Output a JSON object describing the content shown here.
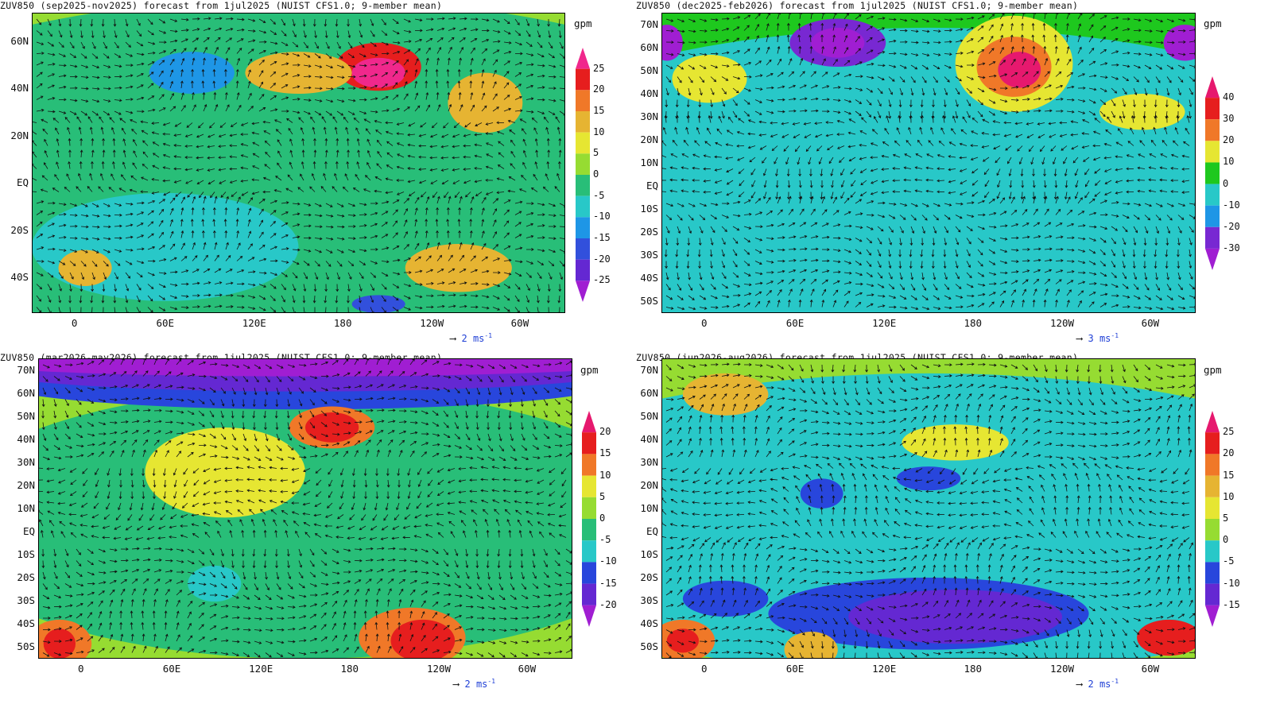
{
  "panels": [
    {
      "id": "son",
      "title": "ZUV850 (sep2025-nov2025) forecast from 1jul2025 (NUIST CFS1.0; 9-member mean)",
      "unit": "gpm",
      "lat_labels": [
        "60N",
        "40N",
        "20N",
        "EQ",
        "20S",
        "40S"
      ],
      "lat_values": [
        60,
        40,
        20,
        0,
        -20,
        -40
      ],
      "lon_labels": [
        "0",
        "60E",
        "120E",
        "180",
        "120W",
        "60W"
      ],
      "colorbar_labels": [
        "25",
        "20",
        "15",
        "10",
        "5",
        "0",
        "-5",
        "-10",
        "-15",
        "-20",
        "-25"
      ],
      "colorbar_colors": [
        "#f0288c",
        "#e61e1e",
        "#f07828",
        "#e6b432",
        "#e6e632",
        "#96dc32",
        "#28be78",
        "#28c8c8",
        "#1e96e6",
        "#3250dc",
        "#6428d2",
        "#a01ed2"
      ],
      "ref_vector": {
        "value": "2",
        "unit": "ms",
        "exp": "-1"
      }
    },
    {
      "id": "djf",
      "title": "ZUV850 (dec2025-feb2026) forecast from 1jul2025 (NUIST CFS1.0; 9-member mean)",
      "unit": "gpm",
      "lat_labels": [
        "70N",
        "60N",
        "50N",
        "40N",
        "30N",
        "20N",
        "10N",
        "EQ",
        "10S",
        "20S",
        "30S",
        "40S",
        "50S"
      ],
      "lat_values": [
        70,
        60,
        50,
        40,
        30,
        20,
        10,
        0,
        -10,
        -20,
        -30,
        -40,
        -50
      ],
      "lon_labels": [
        "0",
        "60E",
        "120E",
        "180",
        "120W",
        "60W"
      ],
      "colorbar_labels": [
        "40",
        "30",
        "20",
        "10",
        "0",
        "-10",
        "-20",
        "-30"
      ],
      "colorbar_colors": [
        "#e6196e",
        "#e61e1e",
        "#f07828",
        "#e6e632",
        "#1ec81e",
        "#28c8c8",
        "#1e96e6",
        "#7828d2",
        "#a01ed2"
      ],
      "ref_vector": {
        "value": "3",
        "unit": "ms",
        "exp": "-1"
      }
    },
    {
      "id": "mam",
      "title": "ZUV850 (mar2026-may2026) forecast from 1jul2025 (NUIST CFS1.0; 9-member mean)",
      "unit": "gpm",
      "lat_labels": [
        "70N",
        "60N",
        "50N",
        "40N",
        "30N",
        "20N",
        "10N",
        "EQ",
        "10S",
        "20S",
        "30S",
        "40S",
        "50S"
      ],
      "lat_values": [
        70,
        60,
        50,
        40,
        30,
        20,
        10,
        0,
        -10,
        -20,
        -30,
        -40,
        -50
      ],
      "lon_labels": [
        "0",
        "60E",
        "120E",
        "180",
        "120W",
        "60W"
      ],
      "colorbar_labels": [
        "20",
        "15",
        "10",
        "5",
        "0",
        "-5",
        "-10",
        "-15",
        "-20"
      ],
      "colorbar_colors": [
        "#e6196e",
        "#e61e1e",
        "#f07828",
        "#e6e632",
        "#96dc32",
        "#28be78",
        "#28c8c8",
        "#2846dc",
        "#6428d2",
        "#a01ed2"
      ],
      "ref_vector": {
        "value": "2",
        "unit": "ms",
        "exp": "-1"
      }
    },
    {
      "id": "jja",
      "title": "ZUV850 (jun2026-aug2026) forecast from 1jul2025 (NUIST CFS1.0; 9-member mean)",
      "unit": "gpm",
      "lat_labels": [
        "70N",
        "60N",
        "50N",
        "40N",
        "30N",
        "20N",
        "10N",
        "EQ",
        "10S",
        "20S",
        "30S",
        "40S",
        "50S"
      ],
      "lat_values": [
        70,
        60,
        50,
        40,
        30,
        20,
        10,
        0,
        -10,
        -20,
        -30,
        -40,
        -50
      ],
      "lon_labels": [
        "0",
        "60E",
        "120E",
        "180",
        "120W",
        "60W"
      ],
      "colorbar_labels": [
        "25",
        "20",
        "15",
        "10",
        "5",
        "0",
        "-5",
        "-10",
        "-15"
      ],
      "colorbar_colors": [
        "#e6196e",
        "#e61e1e",
        "#f07828",
        "#e6b432",
        "#e6e632",
        "#96dc32",
        "#28c8c8",
        "#2846dc",
        "#6428d2",
        "#a01ed2"
      ],
      "ref_vector": {
        "value": "2",
        "unit": "ms",
        "exp": "-1"
      }
    }
  ]
}
